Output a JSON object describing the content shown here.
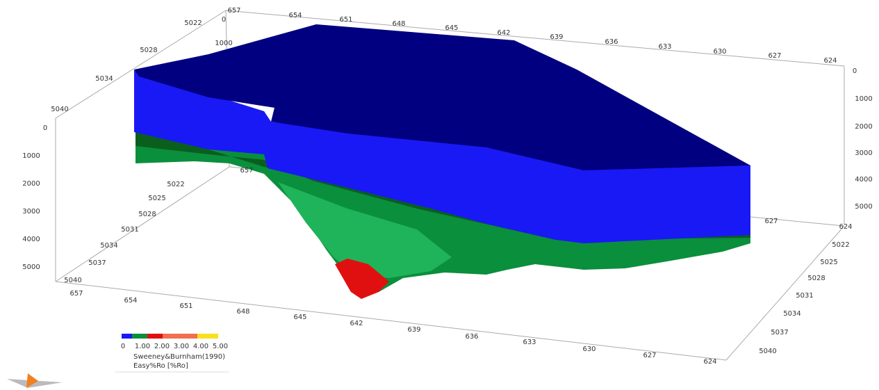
{
  "axes": {
    "top_x": [
      "657",
      "654",
      "651",
      "648",
      "645",
      "642",
      "639",
      "636",
      "633",
      "630",
      "627",
      "624"
    ],
    "top_y": [
      "5022",
      "5028",
      "5034",
      "5040"
    ],
    "back_depth": [
      "0",
      "1000"
    ],
    "left_depth": [
      "0",
      "1000",
      "2000",
      "3000",
      "4000",
      "5000"
    ],
    "right_depth": [
      "0",
      "1000",
      "2000",
      "3000",
      "4000",
      "5000"
    ],
    "floor_y_left": [
      "5022",
      "5025",
      "5028",
      "5031",
      "5034",
      "5037",
      "5040"
    ],
    "floor_inner_x": [
      "657",
      "627",
      "624"
    ],
    "bottom_x": [
      "657",
      "654",
      "651",
      "648",
      "645",
      "642",
      "639",
      "636",
      "633",
      "630",
      "627",
      "624"
    ],
    "right_y": [
      "5022",
      "5025",
      "5028",
      "5031",
      "5034",
      "5037",
      "5040"
    ]
  },
  "legend": {
    "ticks": [
      "0",
      "1.00",
      "2.00",
      "3.00",
      "4.00",
      "5.00"
    ],
    "line1": "Sweeney&Burnham(1990)",
    "line2": "Easy%Ro [%Ro]"
  }
}
